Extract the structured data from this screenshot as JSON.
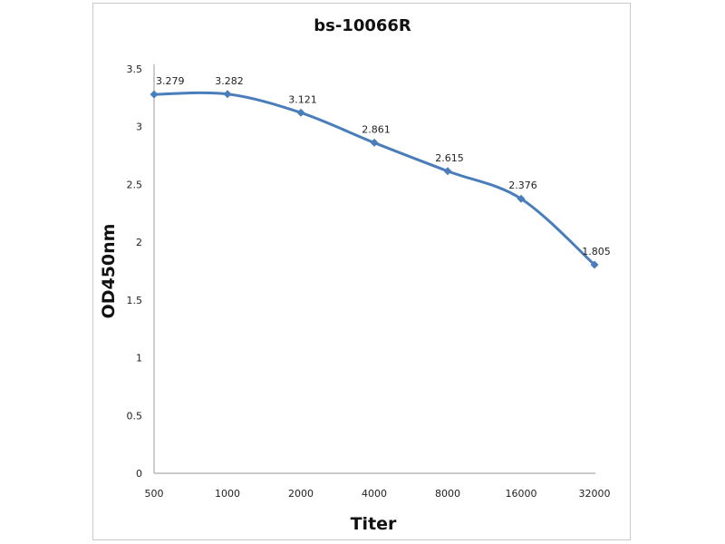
{
  "chart_data": {
    "type": "line",
    "title": "bs-10066R",
    "xlabel": "Titer",
    "ylabel": "OD450nm",
    "categories": [
      "500",
      "1000",
      "2000",
      "4000",
      "8000",
      "16000",
      "32000"
    ],
    "values": [
      3.279,
      3.282,
      3.121,
      2.861,
      2.615,
      2.376,
      1.805
    ],
    "data_labels": [
      "3.279",
      "3.282",
      "3.121",
      "2.861",
      "2.615",
      "2.376",
      "1.805"
    ],
    "ylim": [
      0,
      3.5
    ],
    "yticks": [
      "0",
      "0.5",
      "1",
      "1.5",
      "2",
      "2.5",
      "3",
      "3.5"
    ],
    "grid": false,
    "smoothed": true,
    "marker": "diamond",
    "series_color": "#4a7ebb"
  }
}
